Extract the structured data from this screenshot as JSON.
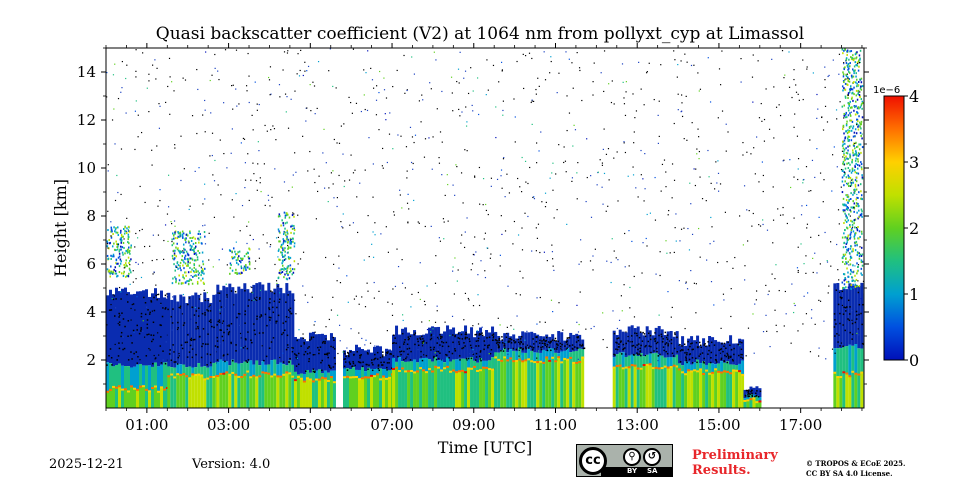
{
  "header": {
    "date": "2025-12-21",
    "version": "Version: 4.0",
    "preliminary_line1": "Preliminary",
    "preliminary_line2": "Results.",
    "copyright_line1": "© TROPOS & ECoE 2025.",
    "copyright_line2": "CC BY SA 4.0 License.",
    "license_icons": [
      "cc-icon",
      "by-icon",
      "sa-icon"
    ],
    "license_labels": [
      "BY",
      "SA"
    ],
    "license_main": "cc"
  },
  "chart_data": {
    "type": "heatmap",
    "title": "Quasi backscatter coefficient (V2) at 1064 nm from pollyxt_cyp at Limassol",
    "xlabel": "Time [UTC]",
    "ylabel": "Height [km]",
    "x_unit": "hours UTC",
    "xlim": [
      0,
      18.55
    ],
    "ylim": [
      0,
      15
    ],
    "xtick_values": [
      1,
      3,
      5,
      7,
      9,
      11,
      13,
      15,
      17
    ],
    "xtick_labels": [
      "01:00",
      "03:00",
      "05:00",
      "07:00",
      "09:00",
      "11:00",
      "13:00",
      "15:00",
      "17:00"
    ],
    "ytick_values": [
      2,
      4,
      6,
      8,
      10,
      12,
      14
    ],
    "ytick_labels": [
      "2",
      "4",
      "6",
      "8",
      "10",
      "12",
      "14"
    ],
    "colorbar": {
      "label": "1e−6",
      "min": 0,
      "max": 4,
      "tick_values": [
        0,
        1,
        2,
        3,
        4
      ],
      "tick_labels": [
        "0",
        "1",
        "2",
        "3",
        "4"
      ],
      "colors": [
        "#0010b8",
        "#0050e0",
        "#00a0d0",
        "#20c080",
        "#60d020",
        "#c0e000",
        "#ffd000",
        "#ff7000",
        "#f01000"
      ]
    },
    "segments": [
      {
        "t0": 0.0,
        "t1": 1.5,
        "surface_top": 0.8,
        "mid_top": 1.8,
        "dark_top": 4.8
      },
      {
        "t0": 1.5,
        "t1": 2.7,
        "surface_top": 1.3,
        "mid_top": 1.8,
        "dark_top": 4.6
      },
      {
        "t0": 2.7,
        "t1": 4.6,
        "surface_top": 1.4,
        "mid_top": 1.9,
        "dark_top": 5.0
      },
      {
        "t0": 4.6,
        "t1": 5.6,
        "surface_top": 1.2,
        "mid_top": 1.5,
        "dark_top": 3.0
      },
      {
        "t0": 5.8,
        "t1": 7.0,
        "surface_top": 1.3,
        "mid_top": 1.6,
        "dark_top": 2.4
      },
      {
        "t0": 7.0,
        "t1": 9.5,
        "surface_top": 1.6,
        "mid_top": 2.0,
        "dark_top": 3.2
      },
      {
        "t0": 9.5,
        "t1": 11.7,
        "surface_top": 2.0,
        "mid_top": 2.4,
        "dark_top": 3.0
      },
      {
        "t0": 12.4,
        "t1": 14.0,
        "surface_top": 1.7,
        "mid_top": 2.2,
        "dark_top": 3.2
      },
      {
        "t0": 14.0,
        "t1": 15.6,
        "surface_top": 1.5,
        "mid_top": 1.9,
        "dark_top": 2.8
      },
      {
        "t0": 15.6,
        "t1": 16.0,
        "surface_top": 0.3,
        "mid_top": 0.5,
        "dark_top": 0.8
      },
      {
        "t0": 17.8,
        "t1": 18.55,
        "surface_top": 1.4,
        "mid_top": 2.6,
        "dark_top": 5.0
      }
    ],
    "aerosol_layers": [
      {
        "t0": 0.0,
        "t1": 0.6,
        "h0": 5.5,
        "h1": 7.6
      },
      {
        "t0": 1.6,
        "t1": 2.4,
        "h0": 5.2,
        "h1": 7.4
      },
      {
        "t0": 3.0,
        "t1": 3.5,
        "h0": 5.6,
        "h1": 6.7
      },
      {
        "t0": 4.2,
        "t1": 4.6,
        "h0": 5.4,
        "h1": 8.2
      },
      {
        "t0": 18.0,
        "t1": 18.5,
        "h0": 5.0,
        "h1": 15.0
      }
    ]
  }
}
